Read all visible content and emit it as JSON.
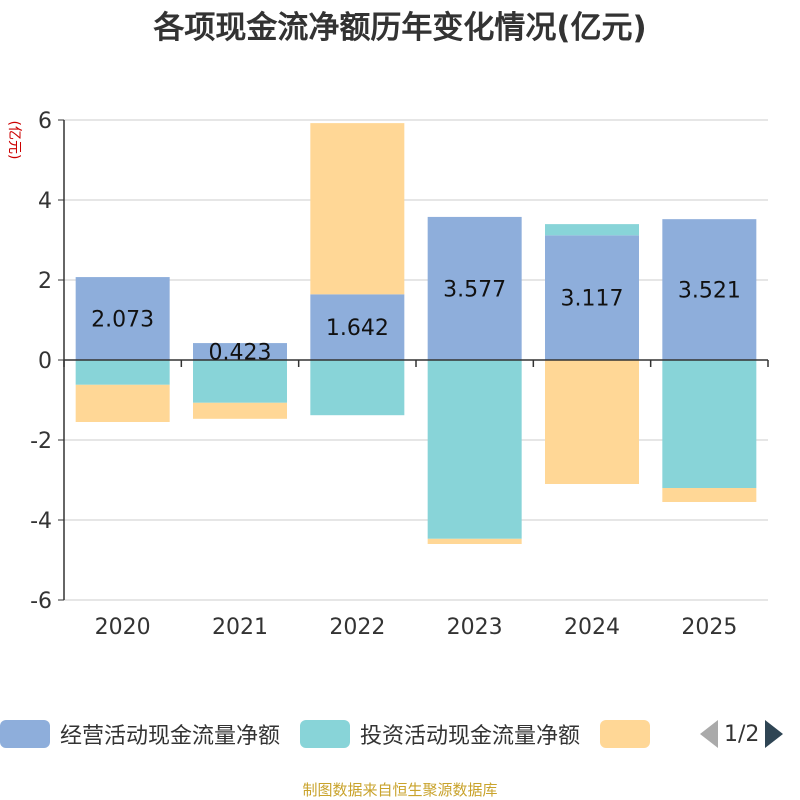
{
  "chart_data": {
    "type": "bar",
    "stacked": true,
    "title": "各项现金流净额历年变化情况(亿元)",
    "ylabel": "(亿元)",
    "ylim": [
      -6,
      6
    ],
    "yticks": [
      6,
      4,
      2,
      0,
      -2,
      -4,
      -6
    ],
    "ytick_labels": [
      "6",
      "4",
      "2",
      "0",
      "-2",
      "-4",
      "-6"
    ],
    "categories": [
      "2020",
      "2021",
      "2022",
      "2023",
      "2024",
      "2025"
    ],
    "grid": true,
    "legend_position": "bottom",
    "series": [
      {
        "name": "经营活动现金流量净额",
        "color": "#8eaedb",
        "values": [
          2.073,
          0.423,
          1.642,
          3.577,
          3.117,
          3.521
        ]
      },
      {
        "name": "投资活动现金流量净额",
        "color": "#88d4d8",
        "values": [
          -0.62,
          -1.07,
          -1.38,
          -4.47,
          0.28,
          -3.2
        ]
      },
      {
        "name": "",
        "color": "#ffd796",
        "values": [
          -0.93,
          -0.4,
          4.28,
          -0.13,
          -3.1,
          -0.35
        ]
      }
    ],
    "data_labels": [
      "2.073",
      "0.423",
      "1.642",
      "3.577",
      "3.117",
      "3.521"
    ]
  },
  "legend": {
    "items": [
      {
        "label": "经营活动现金流量净额",
        "color": "#8eaedb"
      },
      {
        "label": "投资活动现金流量净额",
        "color": "#88d4d8"
      },
      {
        "label": "",
        "color": "#ffd796"
      }
    ],
    "page_indicator": "1/2"
  },
  "source": "制图数据来自恒生聚源数据库"
}
